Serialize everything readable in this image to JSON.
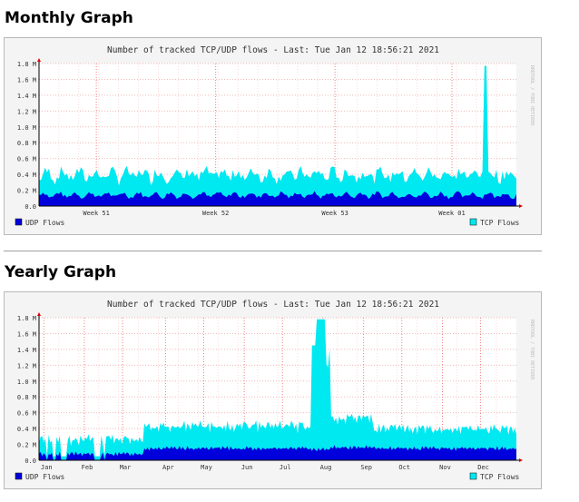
{
  "sections": [
    {
      "heading": "Monthly Graph",
      "chart": {
        "type": "area",
        "title": "Number of tracked TCP/UDP flows - Last: Tue Jan 12 18:56:21 2021",
        "watermark": "RRDTOOL / TOBI OETIKER",
        "y_ticks": [
          "1.8 M",
          "1.6 M",
          "1.4 M",
          "1.2 M",
          "1.0 M",
          "0.8 M",
          "0.6 M",
          "0.4 M",
          "0.2 M",
          "0.0"
        ],
        "ylim": [
          0,
          1.8
        ],
        "x_labels": [
          "Week 51",
          "Week 52",
          "Week 53",
          "Week 01"
        ],
        "x_label_pos": [
          0.12,
          0.37,
          0.62,
          0.865
        ],
        "legend": [
          {
            "name": "UDP Flows",
            "color": "#0000dd"
          },
          {
            "name": "TCP Flows",
            "color": "#00e8f0"
          }
        ],
        "seed": 7,
        "points": 240,
        "udp_base": 0.14,
        "udp_amp": 0.05,
        "udp_cycles": 30,
        "tcp_base": 0.32,
        "tcp_amp": 0.12,
        "tcp_cycles": 30,
        "spikes": [
          {
            "at": 0.935,
            "width": 0.004,
            "value": 1.77
          },
          {
            "at": 0.936,
            "width": 0.003,
            "value": 0.98
          }
        ],
        "gaps": []
      }
    },
    {
      "heading": "Yearly Graph",
      "chart": {
        "type": "area",
        "title": "Number of tracked TCP/UDP flows - Last: Tue Jan 12 18:56:21 2021",
        "watermark": "RRDTOOL / TOBI OETIKER",
        "y_ticks": [
          "1.8 M",
          "1.6 M",
          "1.4 M",
          "1.2 M",
          "1.0 M",
          "0.8 M",
          "0.6 M",
          "0.4 M",
          "0.2 M",
          "0.0"
        ],
        "ylim": [
          0,
          1.8
        ],
        "x_labels": [
          "Jan",
          "Feb",
          "Mar",
          "Apr",
          "May",
          "Jun",
          "Jul",
          "Aug",
          "Sep",
          "Oct",
          "Nov",
          "Dec"
        ],
        "x_label_pos": [
          0.01,
          0.095,
          0.175,
          0.265,
          0.345,
          0.43,
          0.51,
          0.595,
          0.68,
          0.76,
          0.845,
          0.925
        ],
        "legend": [
          {
            "name": "UDP Flows",
            "color": "#0000dd"
          },
          {
            "name": "TCP Flows",
            "color": "#00e8f0"
          }
        ],
        "seed": 13,
        "points": 300,
        "udp_base": 0.1,
        "udp_amp": 0.03,
        "udp_cycles": 120,
        "tcp_base": 0.32,
        "tcp_amp": 0.08,
        "tcp_cycles": 120,
        "segments": [
          {
            "from": 0.0,
            "to": 0.22,
            "udp": 0.08,
            "tcp": 0.22
          },
          {
            "from": 0.22,
            "to": 0.57,
            "udp": 0.15,
            "tcp": 0.38
          },
          {
            "from": 0.57,
            "to": 0.61,
            "udp": 0.14,
            "tcp": 1.25
          },
          {
            "from": 0.61,
            "to": 0.7,
            "udp": 0.16,
            "tcp": 0.48
          },
          {
            "from": 0.7,
            "to": 1.0,
            "udp": 0.15,
            "tcp": 0.34
          }
        ],
        "spikes": [
          {
            "at": 0.585,
            "width": 0.006,
            "value": 1.78
          },
          {
            "at": 0.593,
            "width": 0.006,
            "value": 1.78
          },
          {
            "at": 0.575,
            "width": 0.004,
            "value": 1.45
          }
        ],
        "gaps": [
          {
            "from": 0.015,
            "to": 0.02
          },
          {
            "from": 0.03,
            "to": 0.035
          },
          {
            "from": 0.045,
            "to": 0.05
          },
          {
            "from": 0.05,
            "to": 0.06
          },
          {
            "from": 0.115,
            "to": 0.13
          },
          {
            "from": 0.135,
            "to": 0.138
          }
        ]
      }
    }
  ]
}
